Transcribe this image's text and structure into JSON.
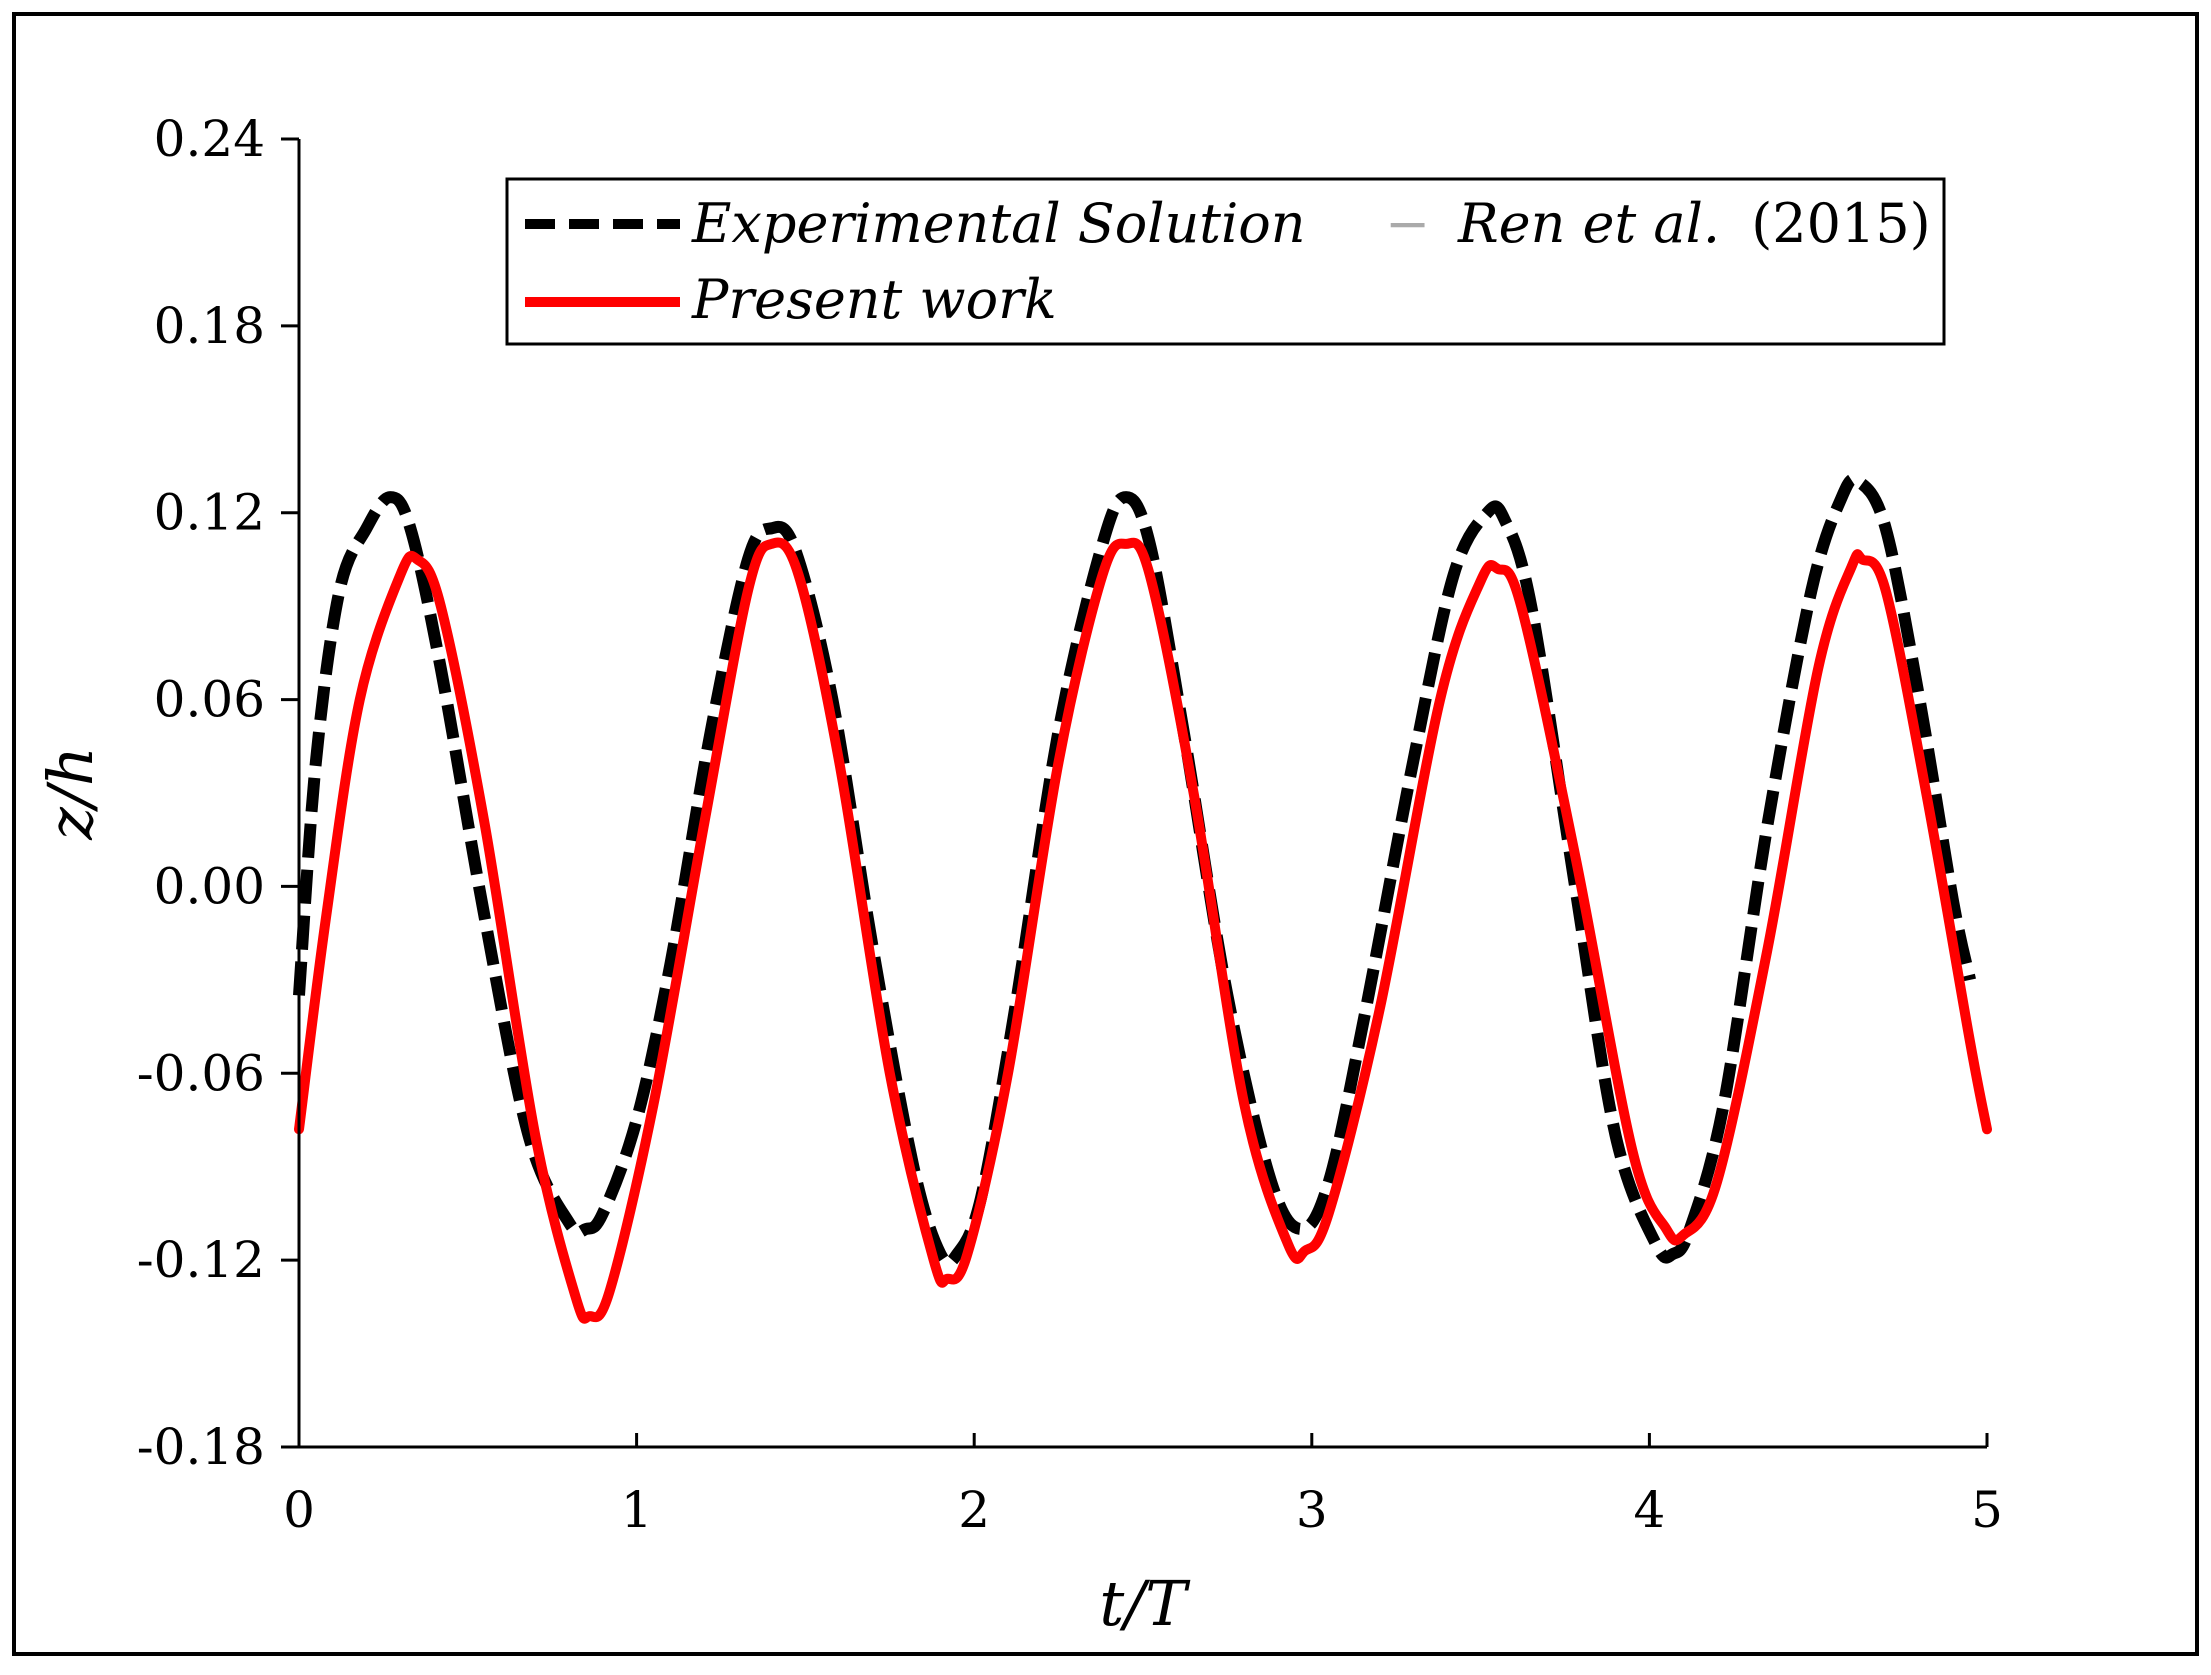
{
  "chart_data": {
    "type": "line",
    "xlabel": "t/T",
    "ylabel": "z/h",
    "xlim": [
      0,
      5
    ],
    "ylim": [
      -0.18,
      0.24
    ],
    "x_ticks": [
      "0",
      "1",
      "2",
      "3",
      "4",
      "5"
    ],
    "y_ticks": [
      "-0.18",
      "-0.12",
      "-0.06",
      "0.00",
      "0.06",
      "0.12",
      "0.18",
      "0.24"
    ],
    "grid": false,
    "legend_position": "top",
    "legend": {
      "experimental": "Experimental Solution",
      "separator": "−",
      "source": "Ren et al.",
      "year": "(2015)",
      "present": "Present work"
    },
    "series": [
      {
        "name": "Experimental Solution − Ren et al. (2015)",
        "color": "#000000",
        "style": "dashed",
        "x": [
          0.0,
          0.05,
          0.12,
          0.2,
          0.27,
          0.33,
          0.42,
          0.55,
          0.68,
          0.8,
          0.85,
          0.9,
          1.0,
          1.1,
          1.22,
          1.33,
          1.4,
          1.47,
          1.58,
          1.7,
          1.82,
          1.9,
          1.95,
          2.02,
          2.12,
          2.25,
          2.38,
          2.45,
          2.52,
          2.62,
          2.75,
          2.88,
          2.97,
          3.05,
          3.15,
          3.3,
          3.42,
          3.52,
          3.57,
          3.65,
          3.78,
          3.9,
          4.02,
          4.07,
          4.12,
          4.22,
          4.35,
          4.48,
          4.57,
          4.62,
          4.7,
          4.8,
          4.9,
          4.95
        ],
        "y": [
          -0.035,
          0.04,
          0.095,
          0.115,
          0.125,
          0.115,
          0.07,
          -0.01,
          -0.08,
          -0.108,
          -0.11,
          -0.105,
          -0.075,
          -0.025,
          0.05,
          0.105,
          0.115,
          0.108,
          0.06,
          -0.02,
          -0.09,
          -0.118,
          -0.118,
          -0.1,
          -0.04,
          0.05,
          0.11,
          0.125,
          0.11,
          0.05,
          -0.035,
          -0.095,
          -0.11,
          -0.095,
          -0.045,
          0.04,
          0.1,
          0.12,
          0.118,
          0.09,
          0.0,
          -0.08,
          -0.115,
          -0.118,
          -0.11,
          -0.07,
          0.02,
          0.095,
          0.125,
          0.13,
          0.115,
          0.06,
          -0.005,
          -0.03
        ]
      },
      {
        "name": "Present work",
        "color": "#ff0000",
        "style": "solid",
        "x": [
          0.0,
          0.08,
          0.18,
          0.3,
          0.35,
          0.42,
          0.55,
          0.7,
          0.82,
          0.86,
          0.92,
          1.05,
          1.2,
          1.33,
          1.4,
          1.48,
          1.6,
          1.75,
          1.88,
          1.92,
          1.98,
          2.1,
          2.25,
          2.38,
          2.45,
          2.52,
          2.65,
          2.8,
          2.93,
          2.98,
          3.05,
          3.2,
          3.38,
          3.5,
          3.55,
          3.62,
          3.78,
          3.95,
          4.05,
          4.1,
          4.2,
          4.35,
          4.5,
          4.6,
          4.63,
          4.7,
          4.82,
          4.95,
          5.0
        ],
        "y": [
          -0.078,
          -0.01,
          0.06,
          0.1,
          0.105,
          0.09,
          0.02,
          -0.08,
          -0.132,
          -0.138,
          -0.13,
          -0.07,
          0.02,
          0.095,
          0.11,
          0.1,
          0.04,
          -0.06,
          -0.12,
          -0.126,
          -0.118,
          -0.06,
          0.04,
          0.1,
          0.11,
          0.1,
          0.03,
          -0.07,
          -0.115,
          -0.117,
          -0.105,
          -0.04,
          0.06,
          0.098,
          0.102,
          0.09,
          0.01,
          -0.085,
          -0.11,
          -0.112,
          -0.095,
          -0.02,
          0.07,
          0.103,
          0.105,
          0.095,
          0.03,
          -0.05,
          -0.078
        ]
      }
    ]
  }
}
